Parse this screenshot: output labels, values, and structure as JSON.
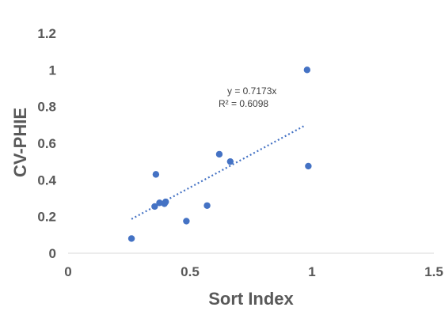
{
  "chart_data": {
    "type": "scatter",
    "title": "",
    "xlabel": "Sort Index",
    "ylabel": "CV-PHIE",
    "xlim": [
      0,
      1.5
    ],
    "ylim": [
      0,
      1.2
    ],
    "x_ticks": [
      "0",
      "0.5",
      "1",
      "1.5"
    ],
    "y_ticks": [
      "0",
      "0.2",
      "0.4",
      "0.6",
      "0.8",
      "1",
      "1.2"
    ],
    "grid": false,
    "legend": "none",
    "point_color": "#4472C4",
    "trendline_color": "#4472C4",
    "series": [
      {
        "points": [
          [
            0.26,
            0.08
          ],
          [
            0.355,
            0.255
          ],
          [
            0.36,
            0.43
          ],
          [
            0.375,
            0.275
          ],
          [
            0.395,
            0.27
          ],
          [
            0.4,
            0.28
          ],
          [
            0.485,
            0.175
          ],
          [
            0.57,
            0.26
          ],
          [
            0.62,
            0.54
          ],
          [
            0.665,
            0.5
          ],
          [
            0.98,
            1.0
          ],
          [
            0.985,
            0.475
          ]
        ]
      }
    ],
    "trendline": {
      "type": "linear",
      "slope": 0.7173,
      "x_range": [
        0.26,
        0.97
      ],
      "equation": "y = 0.7173x",
      "r_squared": "R² = 0.6098"
    }
  }
}
